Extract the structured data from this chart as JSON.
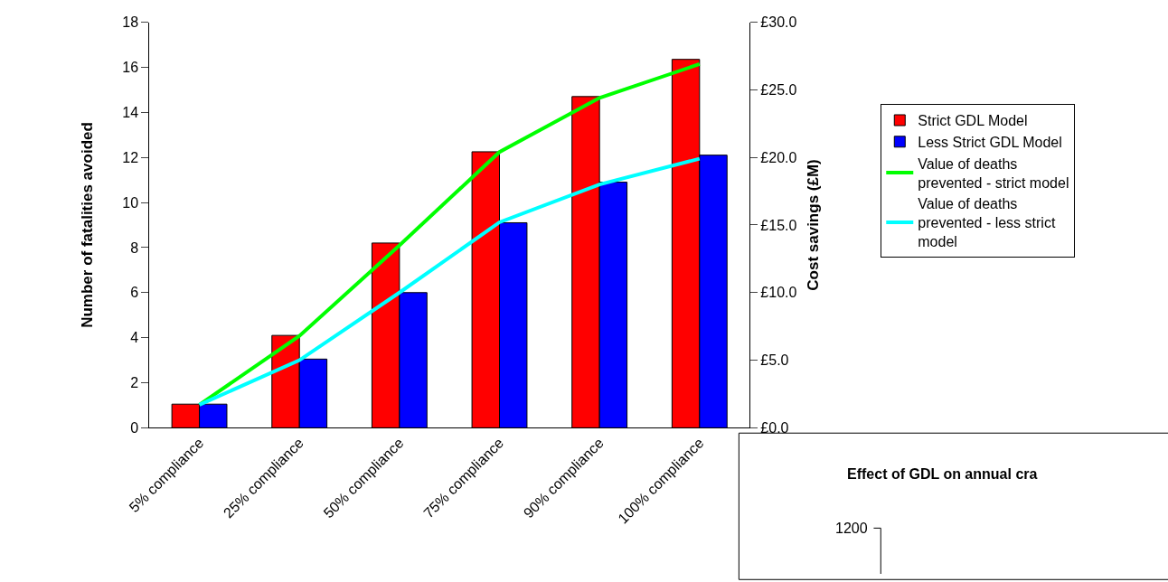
{
  "chart_data": [
    {
      "type": "bar",
      "categories": [
        "5% compliance",
        "25% compliance",
        "50% compliance",
        "75% compliance",
        "90% compliance",
        "100% compliance"
      ],
      "ylabel": "Number of fatalities avoided",
      "y2label": "Cost savings (£M)",
      "ylim": [
        0,
        18
      ],
      "yticks": [
        0,
        2,
        4,
        6,
        8,
        10,
        12,
        14,
        16,
        18
      ],
      "y2lim": [
        0,
        30
      ],
      "y2ticks": [
        {
          "value": 0,
          "label": "£0.0"
        },
        {
          "value": 5,
          "label": "£5.0"
        },
        {
          "value": 10,
          "label": "£10.0"
        },
        {
          "value": 15,
          "label": "£15.0"
        },
        {
          "value": 20,
          "label": "£20.0"
        },
        {
          "value": 25,
          "label": "£25.0"
        },
        {
          "value": 30,
          "label": "£30.0"
        }
      ],
      "grid": false,
      "legend": "right",
      "marker": "none",
      "line_style": "solid",
      "series": [
        {
          "name": "Strict GDL Model",
          "color": "#ff0000",
          "values": [
            1.05,
            4.1,
            8.2,
            12.25,
            14.7,
            16.35
          ]
        },
        {
          "name": "Less Strict GDL Model",
          "color": "#0000ff",
          "values": [
            1.05,
            3.05,
            6.0,
            9.1,
            10.9,
            12.1
          ]
        },
        {
          "name": "Value of deaths prevented - strict model",
          "type": "line",
          "axis": "y2",
          "color": "#00ff00",
          "values": [
            1.7,
            6.8,
            13.5,
            20.4,
            24.4,
            26.9
          ]
        },
        {
          "name": "Value of deaths prevented - less strict model",
          "type": "line",
          "axis": "y2",
          "color": "#00ffff",
          "values": [
            1.7,
            5.0,
            10.0,
            15.2,
            18.0,
            19.9
          ]
        }
      ]
    },
    {
      "type": "other",
      "title": "Effect of GDL on annual cra",
      "annotations": [
        "1200"
      ]
    }
  ]
}
